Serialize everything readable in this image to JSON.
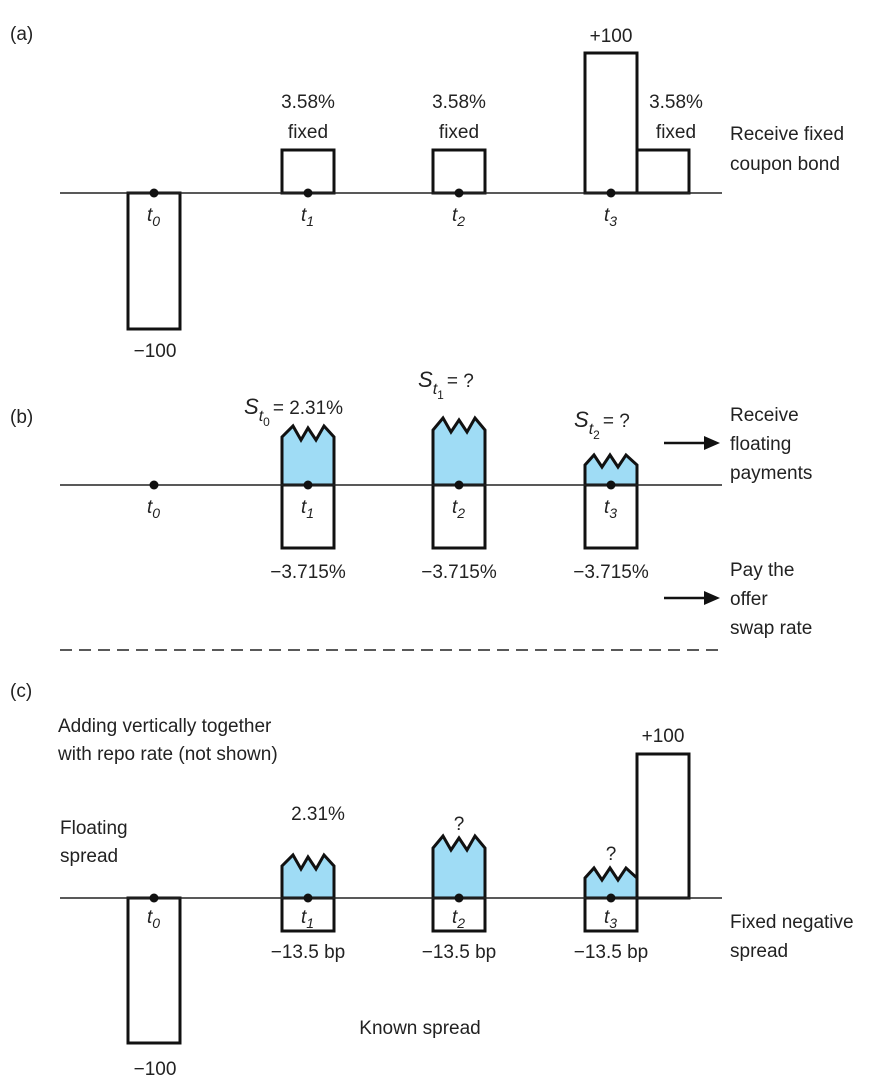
{
  "panel_a": {
    "label": "(a)",
    "times": [
      {
        "t": "t",
        "i": "0"
      },
      {
        "t": "t",
        "i": "1"
      },
      {
        "t": "t",
        "i": "2"
      },
      {
        "t": "t",
        "i": "3"
      }
    ],
    "coupons": [
      {
        "rate": "3.58%",
        "kind": "fixed"
      },
      {
        "rate": "3.58%",
        "kind": "fixed"
      },
      {
        "rate": "3.58%",
        "kind": "fixed"
      }
    ],
    "principal_out": "−100",
    "principal_in": "+100",
    "side_label": [
      "Receive fixed",
      "coupon bond"
    ]
  },
  "panel_b": {
    "label": "(b)",
    "times": [
      {
        "t": "t",
        "i": "0"
      },
      {
        "t": "t",
        "i": "1"
      },
      {
        "t": "t",
        "i": "2"
      },
      {
        "t": "t",
        "i": "3"
      }
    ],
    "floating": [
      {
        "S": "S",
        "t": "t",
        "i": "0",
        "value": "= 2.31%"
      },
      {
        "S": "S",
        "t": "t",
        "i": "1",
        "value": "= ?"
      },
      {
        "S": "S",
        "t": "t",
        "i": "2",
        "value": "= ?"
      }
    ],
    "fixed_payments": [
      "−3.715%",
      "−3.715%",
      "−3.715%"
    ],
    "receive_label": [
      "Receive",
      "floating",
      "payments"
    ],
    "pay_label": [
      "Pay the",
      "offer",
      "swap rate"
    ]
  },
  "panel_c": {
    "label": "(c)",
    "note": [
      "Adding vertically together",
      "with repo rate (not shown)"
    ],
    "times": [
      {
        "t": "t",
        "i": "0"
      },
      {
        "t": "t",
        "i": "1"
      },
      {
        "t": "t",
        "i": "2"
      },
      {
        "t": "t",
        "i": "3"
      }
    ],
    "floating_values": [
      "2.31%",
      "?",
      "?"
    ],
    "spreads": [
      "−13.5 bp",
      "−13.5 bp",
      "−13.5 bp"
    ],
    "principal_out": "−100",
    "principal_in": "+100",
    "floating_spread_label": [
      "Floating",
      "spread"
    ],
    "fixed_spread_label": [
      "Fixed negative",
      "spread"
    ],
    "known_spread_label": "Known spread"
  },
  "colors": {
    "floating_fill": "#9fdcf5",
    "outline": "#111111"
  }
}
